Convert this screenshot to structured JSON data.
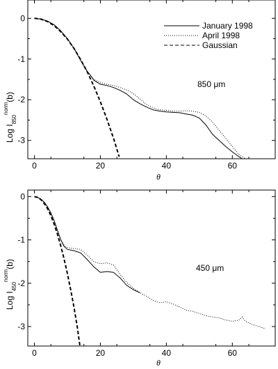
{
  "chart_data": [
    {
      "type": "line",
      "xlabel": "θ",
      "ylabel": {
        "prefix": "Log  I",
        "subscript": "850",
        "superscript": "norm",
        "suffix": "(b)"
      },
      "annotation": "850  μm",
      "xlim": [
        -2,
        73
      ],
      "ylim": [
        -3.45,
        0.45
      ],
      "xticks": [
        0,
        20,
        40,
        60
      ],
      "yticks": [
        0,
        -1,
        -2,
        -3
      ],
      "grid": false,
      "legend_position": "top-right",
      "legend": [
        {
          "label": "January 1998",
          "style": "solid"
        },
        {
          "label": "April 1998",
          "style": "dotted"
        },
        {
          "label": "Gaussian",
          "style": "dashed"
        }
      ],
      "series": [
        {
          "name": "January 1998",
          "style": "solid",
          "x": [
            0,
            2,
            4,
            6,
            8,
            10,
            12,
            14,
            16,
            17,
            18,
            20,
            22,
            24,
            26,
            28,
            30,
            32,
            34,
            36,
            38,
            40,
            42,
            44,
            46,
            48,
            50,
            52,
            54,
            56,
            58,
            60,
            62,
            63
          ],
          "y": [
            0,
            -0.02,
            -0.07,
            -0.16,
            -0.31,
            -0.5,
            -0.74,
            -1.03,
            -1.3,
            -1.4,
            -1.52,
            -1.62,
            -1.65,
            -1.7,
            -1.77,
            -1.86,
            -2.0,
            -2.1,
            -2.18,
            -2.25,
            -2.28,
            -2.3,
            -2.31,
            -2.32,
            -2.35,
            -2.38,
            -2.45,
            -2.62,
            -2.85,
            -3.0,
            -3.15,
            -3.28,
            -3.4,
            -3.45
          ]
        },
        {
          "name": "April 1998",
          "style": "dotted",
          "x": [
            0,
            2,
            4,
            6,
            8,
            10,
            12,
            14,
            16,
            17,
            18,
            20,
            22,
            24,
            26,
            28,
            30,
            32,
            34,
            36,
            38,
            40,
            42,
            44,
            46,
            48,
            50,
            52,
            54,
            56,
            58,
            60,
            62,
            64
          ],
          "y": [
            0,
            -0.02,
            -0.07,
            -0.16,
            -0.31,
            -0.5,
            -0.74,
            -1.03,
            -1.3,
            -1.4,
            -1.5,
            -1.58,
            -1.62,
            -1.65,
            -1.7,
            -1.76,
            -1.85,
            -1.98,
            -2.12,
            -2.2,
            -2.25,
            -2.26,
            -2.28,
            -2.28,
            -2.27,
            -2.28,
            -2.31,
            -2.4,
            -2.55,
            -2.75,
            -2.95,
            -3.15,
            -3.35,
            -3.45
          ]
        },
        {
          "name": "Gaussian",
          "style": "dashed",
          "x": [
            0,
            2,
            4,
            6,
            8,
            10,
            12,
            14,
            16,
            18,
            20,
            22,
            24,
            25.7
          ],
          "y": [
            0,
            -0.02,
            -0.08,
            -0.18,
            -0.33,
            -0.51,
            -0.74,
            -1.01,
            -1.31,
            -1.66,
            -2.05,
            -2.48,
            -2.95,
            -3.4
          ]
        }
      ]
    },
    {
      "type": "line",
      "xlabel": "θ",
      "ylabel": {
        "prefix": "Log  I",
        "subscript": "450",
        "superscript": "norm",
        "suffix": "(b)"
      },
      "annotation": "450  μm",
      "xlim": [
        -2,
        73
      ],
      "ylim": [
        -3.45,
        0.15
      ],
      "xticks": [
        0,
        20,
        40,
        60
      ],
      "yticks": [
        0,
        -1,
        -2,
        -3
      ],
      "grid": false,
      "series": [
        {
          "name": "January 1998",
          "style": "solid",
          "x": [
            0,
            1,
            2,
            3,
            4,
            5,
            6,
            7,
            8,
            9,
            10,
            12,
            14,
            16,
            18,
            20,
            22,
            24,
            26,
            28,
            30,
            32
          ],
          "y": [
            0,
            -0.02,
            -0.06,
            -0.13,
            -0.24,
            -0.38,
            -0.56,
            -0.78,
            -1.0,
            -1.15,
            -1.22,
            -1.25,
            -1.3,
            -1.45,
            -1.62,
            -1.75,
            -1.73,
            -1.75,
            -1.88,
            -2.05,
            -2.15,
            -2.22
          ]
        },
        {
          "name": "April 1998",
          "style": "dotted",
          "x": [
            0,
            1,
            2,
            3,
            4,
            5,
            6,
            7,
            8,
            9,
            10,
            12,
            14,
            16,
            18,
            20,
            22,
            24,
            26,
            28,
            30,
            32,
            34,
            36,
            38,
            40,
            42,
            44,
            46,
            48,
            50,
            52,
            54,
            56,
            58,
            60,
            62,
            63,
            64,
            66,
            68,
            70
          ],
          "y": [
            0,
            -0.02,
            -0.06,
            -0.13,
            -0.24,
            -0.38,
            -0.56,
            -0.78,
            -1.0,
            -1.12,
            -1.18,
            -1.2,
            -1.22,
            -1.35,
            -1.5,
            -1.55,
            -1.53,
            -1.58,
            -1.8,
            -1.98,
            -2.12,
            -2.22,
            -2.3,
            -2.4,
            -2.45,
            -2.43,
            -2.48,
            -2.55,
            -2.62,
            -2.65,
            -2.7,
            -2.75,
            -2.78,
            -2.8,
            -2.85,
            -2.88,
            -2.85,
            -2.78,
            -2.88,
            -2.95,
            -3.0,
            -3.05
          ]
        },
        {
          "name": "Gaussian",
          "style": "dashed",
          "x": [
            0,
            1,
            2,
            3,
            4,
            5,
            6,
            7,
            8,
            9,
            10,
            11,
            12,
            13,
            13.8
          ],
          "y": [
            0,
            -0.02,
            -0.07,
            -0.16,
            -0.28,
            -0.44,
            -0.64,
            -0.87,
            -1.14,
            -1.44,
            -1.78,
            -2.15,
            -2.56,
            -3.01,
            -3.45
          ]
        }
      ]
    }
  ]
}
